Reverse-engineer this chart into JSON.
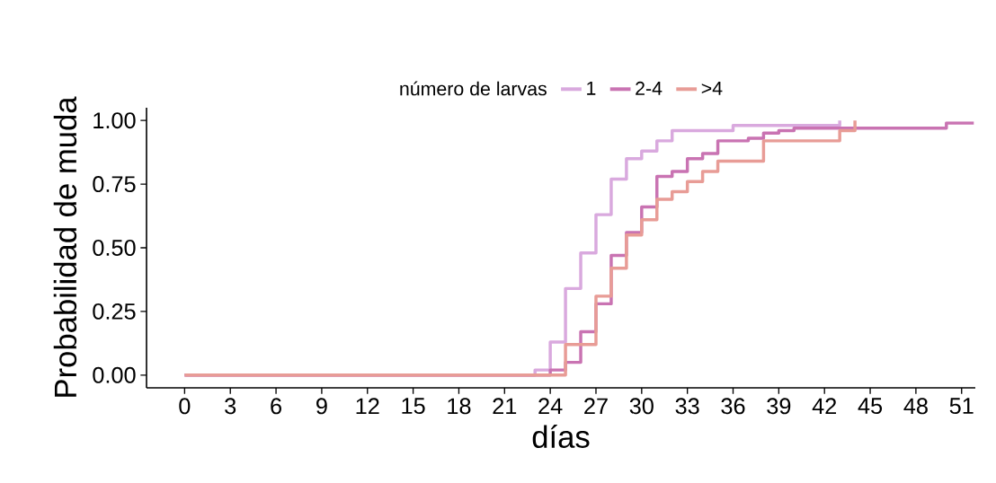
{
  "chart_data": {
    "type": "step",
    "xlabel": "días",
    "ylabel": "Probabilidad de muda",
    "legend_title": "número de larvas",
    "legend": "top",
    "grid": false,
    "line_style": "solid",
    "marker": "none",
    "xlim": [
      -2.5,
      51.9
    ],
    "ylim": [
      -0.05,
      1.05
    ],
    "xticks": [
      0,
      3,
      6,
      9,
      12,
      15,
      18,
      21,
      24,
      27,
      30,
      33,
      36,
      39,
      42,
      45,
      48,
      51
    ],
    "yticks": [
      {
        "value": 0,
        "label": "0.00"
      },
      {
        "value": 0.25,
        "label": "0.25"
      },
      {
        "value": 0.5,
        "label": "0.50"
      },
      {
        "value": 0.75,
        "label": "0.75"
      },
      {
        "value": 1,
        "label": "1.00"
      }
    ],
    "series": [
      {
        "name": "1",
        "color": "#d9a9de",
        "x": [
          0,
          23,
          24,
          25,
          26,
          27,
          28,
          29,
          30,
          31,
          32,
          36,
          43
        ],
        "values": [
          0,
          0.02,
          0.13,
          0.34,
          0.48,
          0.63,
          0.77,
          0.85,
          0.88,
          0.92,
          0.96,
          0.98,
          1.0
        ]
      },
      {
        "name": "2-4",
        "color": "#c973b2",
        "x": [
          0,
          24,
          25,
          26,
          27,
          28,
          29,
          30,
          31,
          32,
          33,
          34,
          35,
          37,
          38,
          39,
          40,
          50,
          51.8
        ],
        "values": [
          0,
          0.02,
          0.05,
          0.17,
          0.28,
          0.47,
          0.56,
          0.66,
          0.78,
          0.8,
          0.85,
          0.87,
          0.92,
          0.93,
          0.95,
          0.96,
          0.97,
          0.99,
          0.99
        ]
      },
      {
        "name": ">4",
        "color": "#e89c96",
        "x": [
          0,
          25,
          27,
          28,
          29,
          30,
          31,
          32,
          33,
          34,
          35,
          38,
          43,
          44
        ],
        "values": [
          0,
          0.12,
          0.31,
          0.42,
          0.55,
          0.61,
          0.69,
          0.72,
          0.76,
          0.8,
          0.84,
          0.92,
          0.96,
          1.0
        ]
      }
    ]
  }
}
